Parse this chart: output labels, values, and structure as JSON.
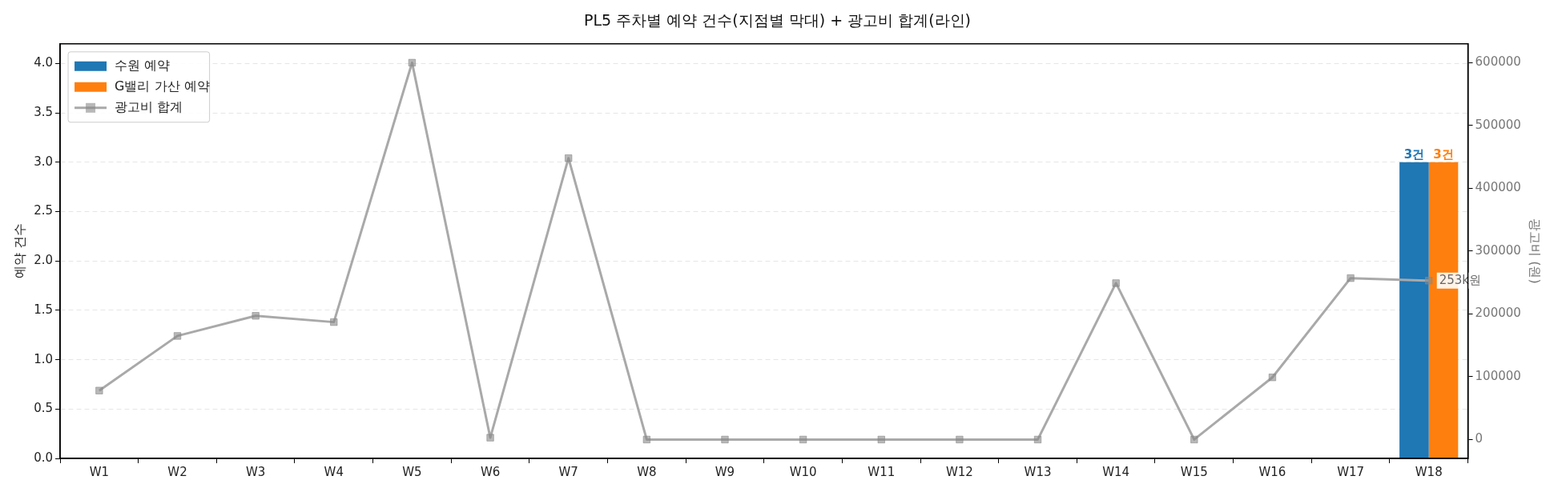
{
  "chart_data": {
    "type": "bar",
    "title": "PL5 주차별 예약 건수(지점별 막대) + 광고비 합계(라인)",
    "ylabel": "예약 건수",
    "y2label": "광고비 (원)",
    "categories": [
      "W1",
      "W2",
      "W3",
      "W4",
      "W5",
      "W6",
      "W7",
      "W8",
      "W9",
      "W10",
      "W11",
      "W12",
      "W13",
      "W14",
      "W15",
      "W16",
      "W17",
      "W18"
    ],
    "series": [
      {
        "name": "수원 예약",
        "color": "#1f77b4",
        "values": [
          0,
          0,
          0,
          0,
          0,
          0,
          0,
          0,
          0,
          0,
          0,
          0,
          0,
          0,
          0,
          0,
          0,
          3
        ],
        "value_labels": [
          null,
          null,
          null,
          null,
          null,
          null,
          null,
          null,
          null,
          null,
          null,
          null,
          null,
          null,
          null,
          null,
          null,
          "3건"
        ]
      },
      {
        "name": "G밸리 가산 예약",
        "color": "#ff7f0e",
        "values": [
          0,
          0,
          0,
          0,
          0,
          0,
          0,
          0,
          0,
          0,
          0,
          0,
          0,
          0,
          0,
          0,
          0,
          3
        ],
        "value_labels": [
          null,
          null,
          null,
          null,
          null,
          null,
          null,
          null,
          null,
          null,
          null,
          null,
          null,
          null,
          null,
          null,
          null,
          "3건"
        ]
      },
      {
        "name": "광고비 합계",
        "type": "line",
        "axis": "y2",
        "color": "#a9a9a9",
        "marker": "square",
        "values": [
          78000,
          165000,
          197000,
          187000,
          600000,
          3000,
          448000,
          0,
          0,
          0,
          0,
          0,
          0,
          249000,
          0,
          99000,
          257000,
          253000
        ],
        "value_labels": [
          null,
          null,
          null,
          null,
          null,
          null,
          null,
          null,
          null,
          null,
          null,
          null,
          null,
          null,
          null,
          null,
          null,
          "253k원"
        ]
      }
    ],
    "ylim": [
      0,
      4.2
    ],
    "yticks": [
      {
        "value": 0,
        "label": "0.0"
      },
      {
        "value": 0.5,
        "label": "0.5"
      },
      {
        "value": 1,
        "label": "1.0"
      },
      {
        "value": 1.5,
        "label": "1.5"
      },
      {
        "value": 2,
        "label": "2.0"
      },
      {
        "value": 2.5,
        "label": "2.5"
      },
      {
        "value": 3,
        "label": "3.0"
      },
      {
        "value": 3.5,
        "label": "3.5"
      },
      {
        "value": 4,
        "label": "4.0"
      }
    ],
    "y2lim": [
      -30000,
      630000
    ],
    "y2ticks": [
      0,
      100000,
      200000,
      300000,
      400000,
      500000,
      600000
    ],
    "grid": "y",
    "legend": "top left"
  }
}
